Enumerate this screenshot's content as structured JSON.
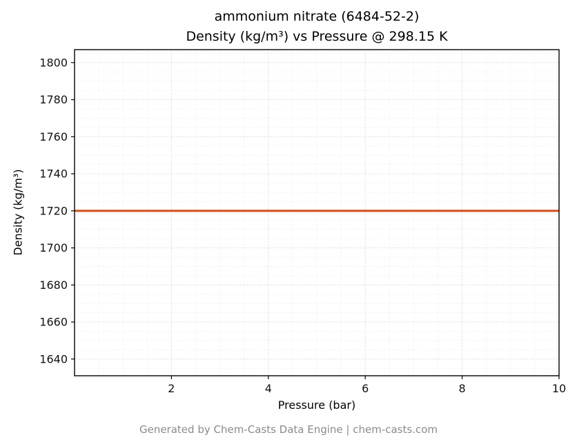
{
  "title": {
    "line1": "ammonium nitrate (6484-52-2)",
    "line2": "Density (kg/m³) vs Pressure @ 298.15 K"
  },
  "axes": {
    "xlabel": "Pressure (bar)",
    "ylabel": "Density (kg/m³)"
  },
  "footer": {
    "text": "Generated by Chem-Casts Data Engine | chem-casts.com"
  },
  "chart_data": {
    "type": "line",
    "title": "ammonium nitrate (6484-52-2) Density (kg/m³) vs Pressure @ 298.15 K",
    "xlabel": "Pressure (bar)",
    "ylabel": "Density (kg/m³)",
    "xlim": [
      0,
      10
    ],
    "ylim": [
      1631,
      1807
    ],
    "x_ticks": [
      2,
      4,
      6,
      8,
      10
    ],
    "y_ticks": [
      1640,
      1660,
      1680,
      1700,
      1720,
      1740,
      1760,
      1780,
      1800
    ],
    "x_minor_step": 0.5,
    "y_minor_step": 5,
    "grid": true,
    "legend": "none",
    "series": [
      {
        "name": "density",
        "color": "#d2521e",
        "x": [
          0,
          10
        ],
        "y": [
          1720,
          1720
        ]
      }
    ],
    "colors": {
      "line": "#d2521e",
      "major_grid": "#c8c8c8",
      "minor_grid": "#e4e4e4",
      "frame": "#000000",
      "tick_label": "#111111",
      "footer_text": "#8a8a8a"
    }
  }
}
